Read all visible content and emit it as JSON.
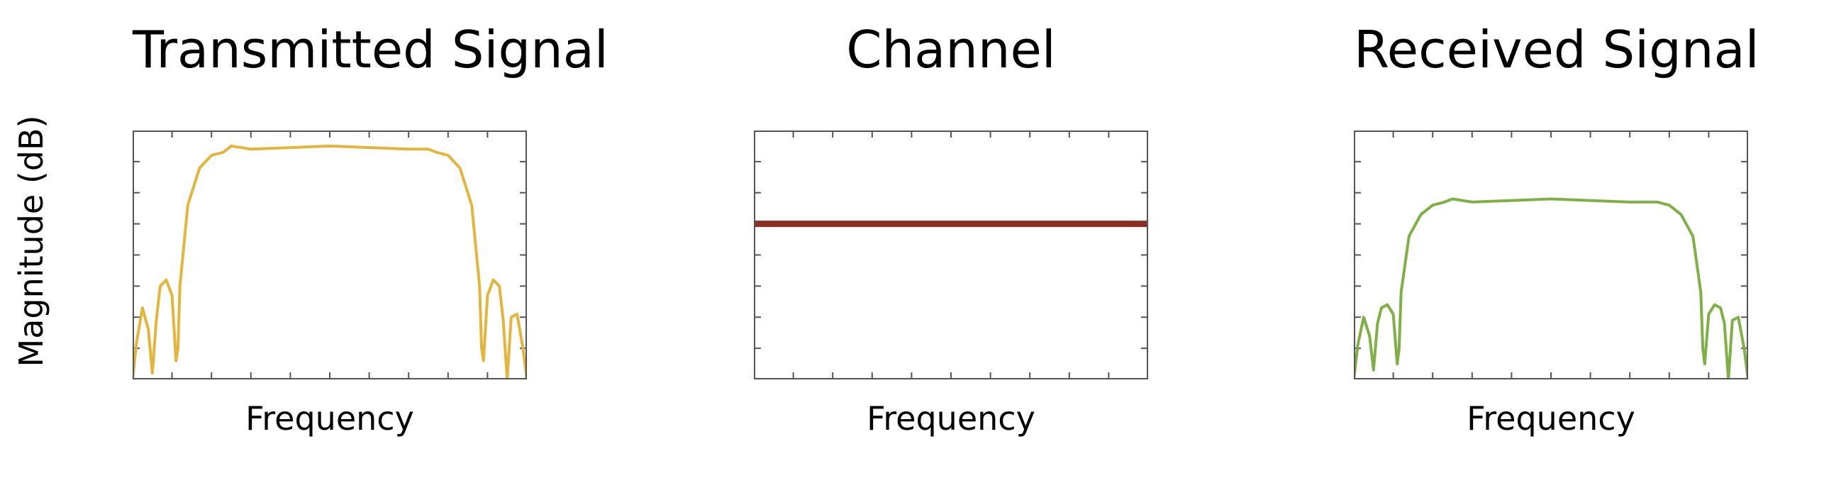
{
  "ylabel": "Magnitude (dB)",
  "colors": {
    "transmitted": "#E4B53C",
    "channel": "#8B2E26",
    "received": "#7FB045",
    "frame": "#555555"
  },
  "chart_data": [
    {
      "type": "line",
      "title": "Transmitted Signal",
      "xlabel": "Frequency",
      "ylabel": "Magnitude (dB)",
      "xlim": [
        0,
        1
      ],
      "ylim": [
        0,
        8
      ],
      "grid": false,
      "series": [
        {
          "x": [
            0.0,
            0.01,
            0.025,
            0.04,
            0.05,
            0.06,
            0.07,
            0.085,
            0.1,
            0.11,
            0.115,
            0.12,
            0.14,
            0.17,
            0.2,
            0.23,
            0.25,
            0.3,
            0.5,
            0.7,
            0.75,
            0.77,
            0.8,
            0.83,
            0.86,
            0.88,
            0.885,
            0.89,
            0.9,
            0.915,
            0.93,
            0.94,
            0.95,
            0.96,
            0.975,
            0.99,
            1.0
          ],
          "y": [
            0.0,
            1.2,
            2.3,
            1.6,
            0.2,
            1.9,
            3.0,
            3.2,
            2.7,
            0.6,
            1.0,
            3.0,
            5.6,
            6.8,
            7.2,
            7.3,
            7.5,
            7.4,
            7.5,
            7.4,
            7.4,
            7.3,
            7.2,
            6.8,
            5.6,
            3.0,
            1.0,
            0.6,
            2.7,
            3.2,
            3.0,
            1.9,
            0.0,
            2.0,
            2.1,
            1.0,
            0.0
          ]
        }
      ]
    },
    {
      "type": "line",
      "title": "Channel",
      "xlabel": "Frequency",
      "xlim": [
        0,
        1
      ],
      "ylim": [
        0,
        8
      ],
      "grid": false,
      "series": [
        {
          "x": [
            0,
            1
          ],
          "y": [
            5.0,
            5.0
          ]
        }
      ]
    },
    {
      "type": "line",
      "title": "Received Signal",
      "xlabel": "Frequency",
      "xlim": [
        0,
        1
      ],
      "ylim": [
        0,
        8
      ],
      "grid": false,
      "series": [
        {
          "x": [
            0.0,
            0.01,
            0.025,
            0.04,
            0.05,
            0.06,
            0.07,
            0.085,
            0.1,
            0.11,
            0.115,
            0.12,
            0.14,
            0.17,
            0.2,
            0.23,
            0.25,
            0.3,
            0.5,
            0.7,
            0.75,
            0.77,
            0.8,
            0.83,
            0.86,
            0.88,
            0.885,
            0.89,
            0.9,
            0.915,
            0.93,
            0.94,
            0.95,
            0.96,
            0.975,
            0.99,
            1.0
          ],
          "y": [
            0.0,
            1.1,
            2.0,
            1.4,
            0.3,
            1.8,
            2.3,
            2.4,
            2.1,
            0.5,
            1.0,
            2.8,
            4.6,
            5.3,
            5.6,
            5.7,
            5.8,
            5.7,
            5.8,
            5.7,
            5.7,
            5.7,
            5.6,
            5.3,
            4.6,
            2.8,
            1.0,
            0.5,
            2.1,
            2.4,
            2.3,
            1.8,
            0.0,
            1.9,
            2.0,
            1.0,
            0.0
          ]
        }
      ]
    }
  ]
}
